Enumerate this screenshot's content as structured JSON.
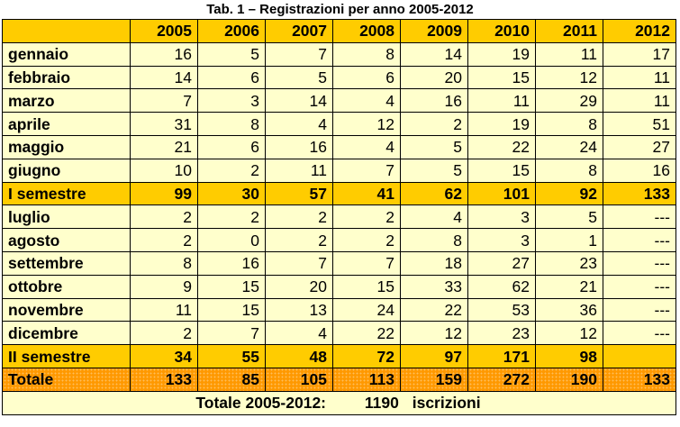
{
  "title": "Tab. 1 – Registrazioni per anno 2005-2012",
  "columns": [
    "2005",
    "2006",
    "2007",
    "2008",
    "2009",
    "2010",
    "2011",
    "2012"
  ],
  "rows": [
    {
      "label": "gennaio",
      "type": "month",
      "values": [
        "16",
        "5",
        "7",
        "8",
        "14",
        "19",
        "11",
        "17"
      ]
    },
    {
      "label": "febbraio",
      "type": "month",
      "values": [
        "14",
        "6",
        "5",
        "6",
        "20",
        "15",
        "12",
        "11"
      ]
    },
    {
      "label": "marzo",
      "type": "month",
      "values": [
        "7",
        "3",
        "14",
        "4",
        "16",
        "11",
        "29",
        "11"
      ]
    },
    {
      "label": "aprile",
      "type": "month",
      "values": [
        "31",
        "8",
        "4",
        "12",
        "2",
        "19",
        "8",
        "51"
      ]
    },
    {
      "label": "maggio",
      "type": "month",
      "values": [
        "21",
        "6",
        "16",
        "4",
        "5",
        "22",
        "24",
        "27"
      ]
    },
    {
      "label": "giugno",
      "type": "month",
      "values": [
        "10",
        "2",
        "11",
        "7",
        "5",
        "15",
        "8",
        "16"
      ]
    },
    {
      "label": "I semestre",
      "type": "semester",
      "values": [
        "99",
        "30",
        "57",
        "41",
        "62",
        "101",
        "92",
        "133"
      ]
    },
    {
      "label": "luglio",
      "type": "month",
      "values": [
        "2",
        "2",
        "2",
        "2",
        "4",
        "3",
        "5",
        "---"
      ]
    },
    {
      "label": "agosto",
      "type": "month",
      "values": [
        "2",
        "0",
        "2",
        "2",
        "8",
        "3",
        "1",
        "---"
      ]
    },
    {
      "label": "settembre",
      "type": "month",
      "values": [
        "8",
        "16",
        "7",
        "7",
        "18",
        "27",
        "23",
        "---"
      ]
    },
    {
      "label": "ottobre",
      "type": "month",
      "values": [
        "9",
        "15",
        "20",
        "15",
        "33",
        "62",
        "21",
        "---"
      ]
    },
    {
      "label": "novembre",
      "type": "month",
      "values": [
        "11",
        "15",
        "13",
        "24",
        "22",
        "53",
        "36",
        "---"
      ]
    },
    {
      "label": "dicembre",
      "type": "month",
      "values": [
        "2",
        "7",
        "4",
        "22",
        "12",
        "23",
        "12",
        "---"
      ]
    },
    {
      "label": "II semestre",
      "type": "semester",
      "values": [
        "34",
        "55",
        "48",
        "72",
        "97",
        "171",
        "98",
        ""
      ]
    },
    {
      "label": "Totale",
      "type": "total",
      "values": [
        "133",
        "85",
        "105",
        "113",
        "159",
        "272",
        "190",
        "133"
      ]
    }
  ],
  "footer": {
    "label": "Totale 2005-2012:",
    "value": "1190",
    "unit": "iscrizioni"
  }
}
